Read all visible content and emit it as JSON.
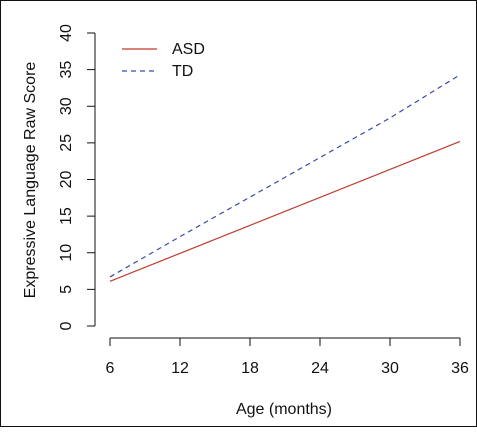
{
  "chart_data": {
    "type": "line",
    "title": "",
    "xlabel": "Age (months)",
    "ylabel": "Expressive Language Raw Score",
    "x": [
      6,
      36
    ],
    "xlim": [
      6,
      36
    ],
    "ylim": [
      0,
      40
    ],
    "x_ticks": [
      6,
      12,
      18,
      24,
      30,
      36
    ],
    "y_ticks": [
      0,
      5,
      10,
      15,
      20,
      25,
      30,
      35,
      40
    ],
    "x_tick_labels": [
      "6",
      "12",
      "18",
      "24",
      "30",
      "36"
    ],
    "y_tick_labels": [
      "0",
      "5",
      "10",
      "15",
      "20",
      "25",
      "30",
      "35",
      "40"
    ],
    "grid": false,
    "legend_position": "top-left",
    "series": [
      {
        "name": "ASD",
        "x": [
          6,
          36
        ],
        "values": [
          6.1,
          25.2
        ],
        "color": "#c0392b",
        "line_style": "solid"
      },
      {
        "name": "TD",
        "x": [
          6,
          12,
          18,
          24,
          30,
          36
        ],
        "values": [
          6.7,
          12.2,
          17.6,
          23.0,
          28.4,
          34.3
        ],
        "color": "#3b4aa3",
        "line_style": "dashed"
      }
    ]
  }
}
